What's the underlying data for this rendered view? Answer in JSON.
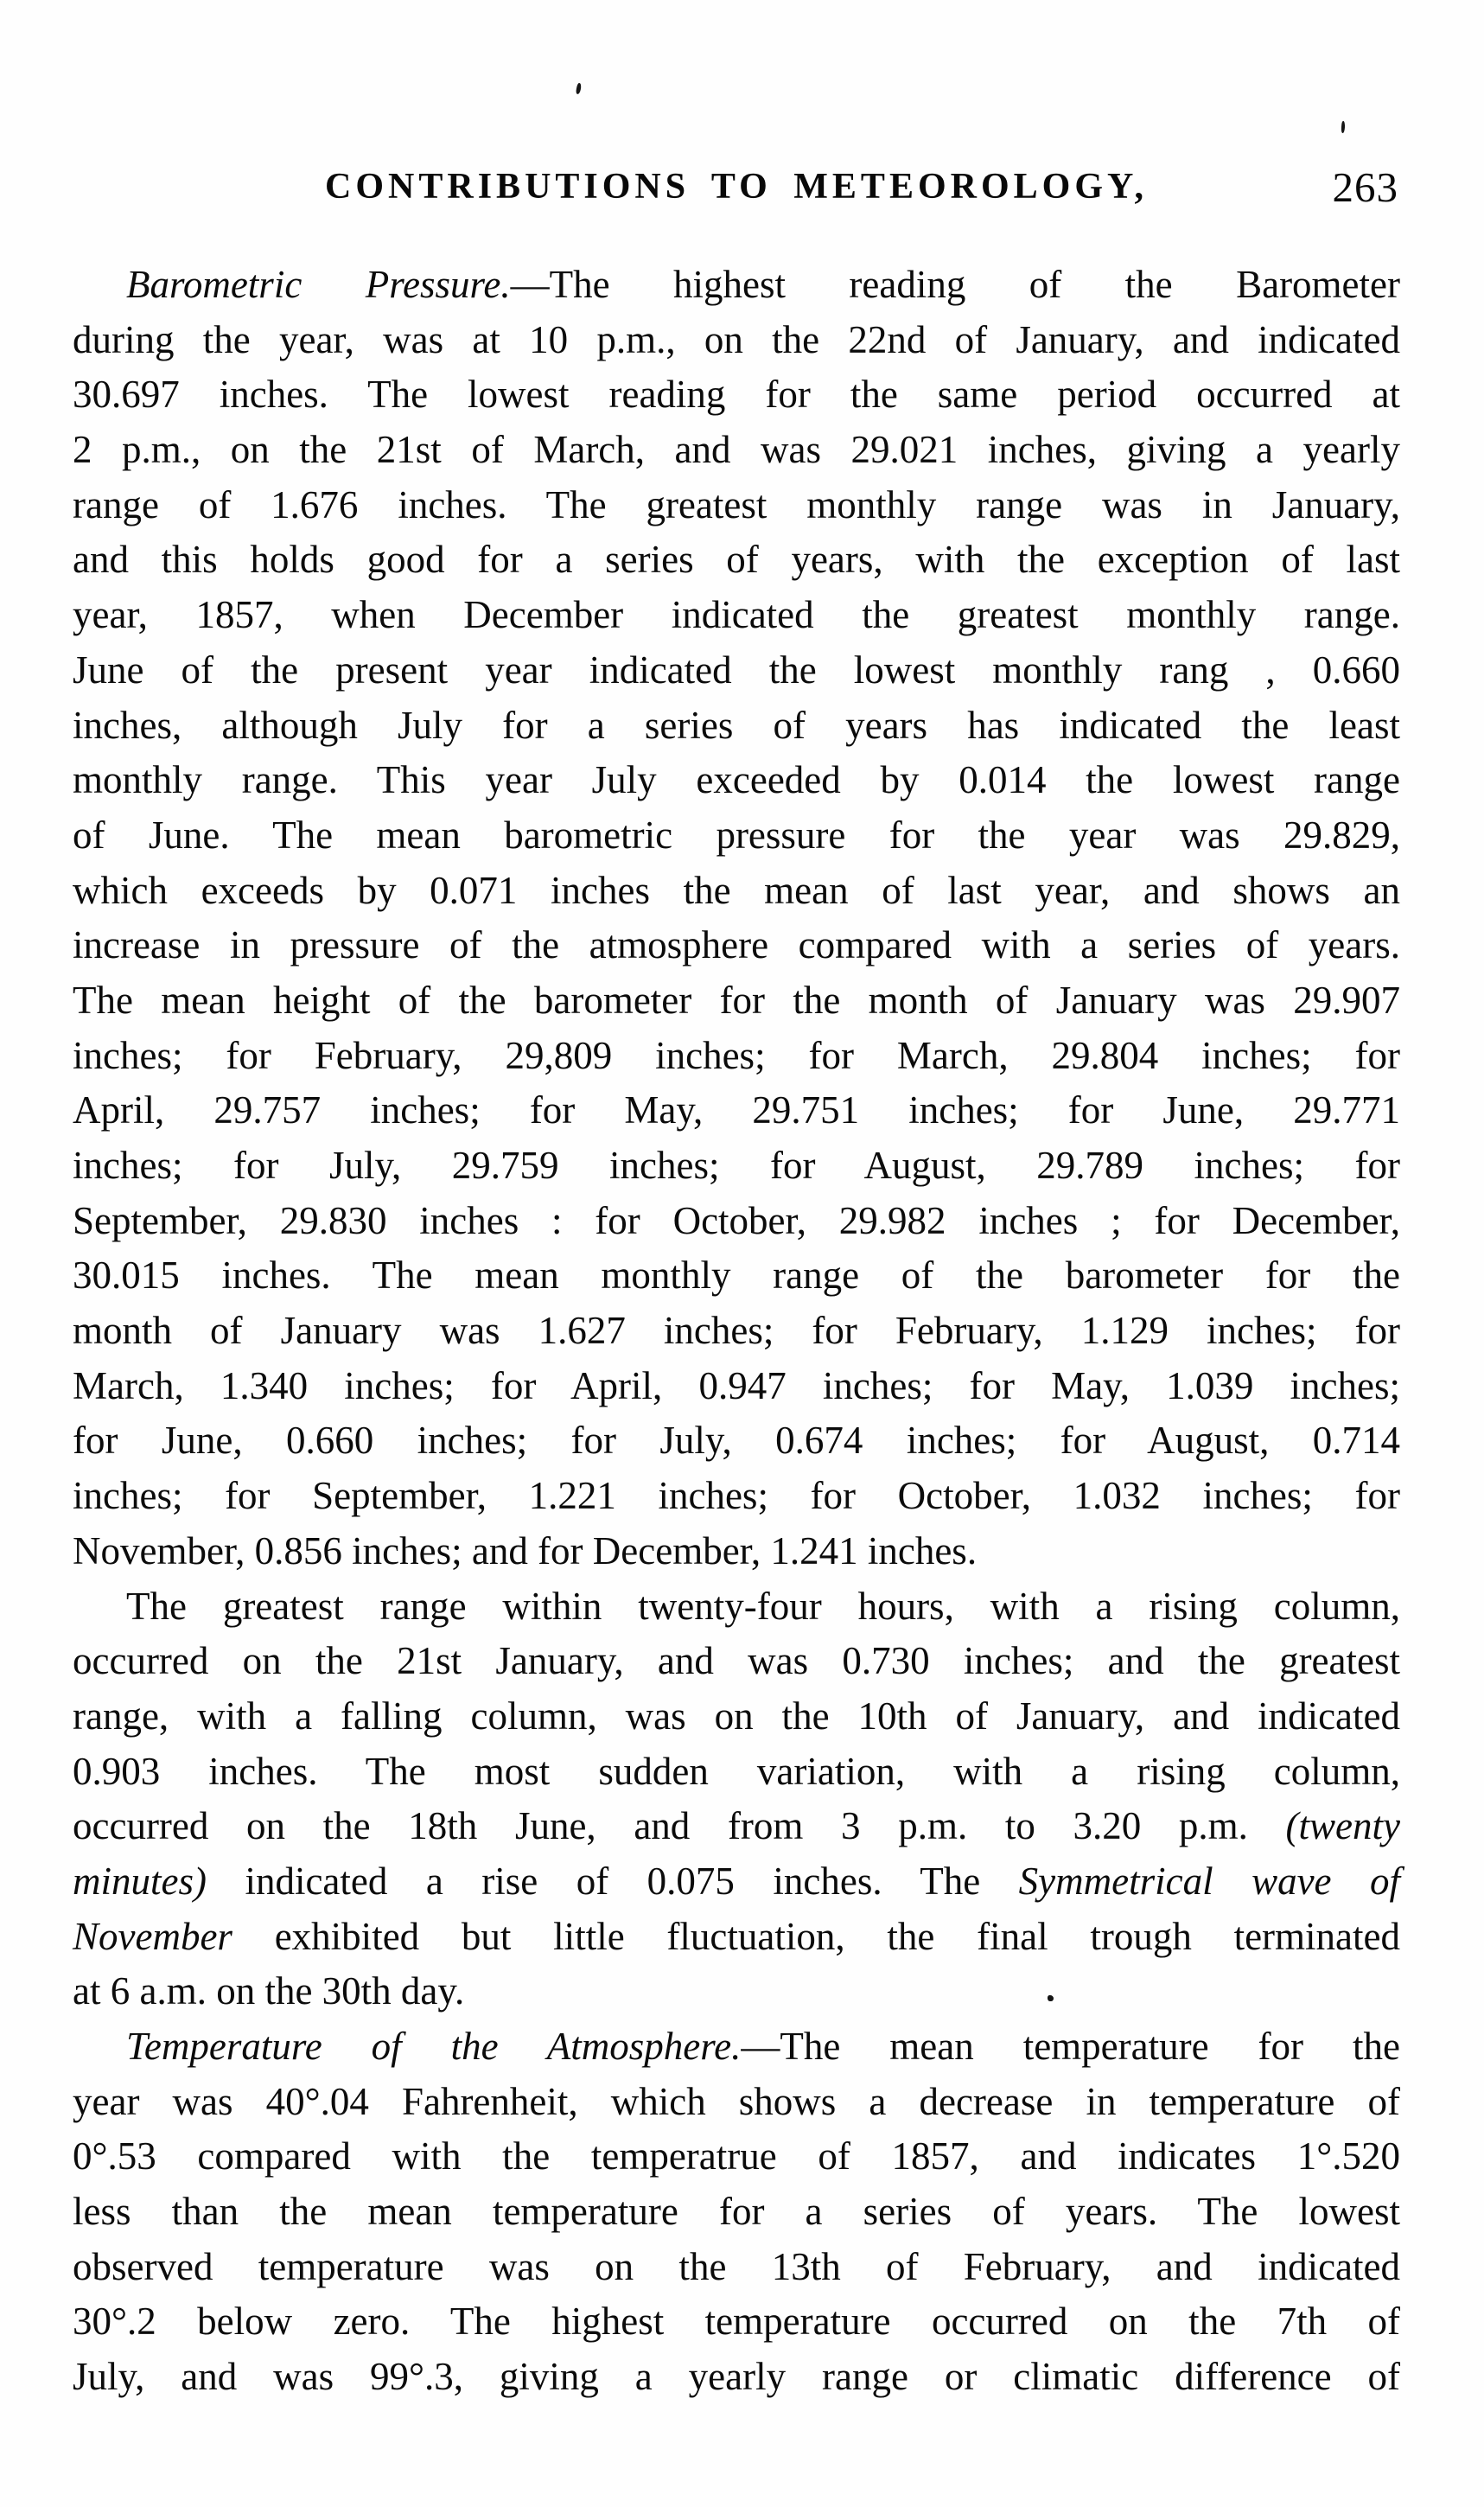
{
  "document": {
    "header": {
      "title": "CONTRIBUTIONS TO METEOROLOGY,",
      "page_number": "263"
    },
    "paragraphs": [
      {
        "name": "barometric-pressure",
        "lines": [
          {
            "indent": true,
            "flush": false,
            "runs": [
              {
                "text": "Barometric Pressure.",
                "italic": true
              },
              {
                "text": "—The highest reading of the Barometer",
                "italic": false
              }
            ]
          },
          {
            "indent": false,
            "flush": false,
            "runs": [
              {
                "text": "during the year, was at 10 p.m., on the 22nd of January, and indicated",
                "italic": false
              }
            ]
          },
          {
            "indent": false,
            "flush": false,
            "runs": [
              {
                "text": "30.697 inches. The lowest reading for the same period occurred at",
                "italic": false
              }
            ]
          },
          {
            "indent": false,
            "flush": false,
            "runs": [
              {
                "text": "2 p.m., on the 21st of March, and was 29.021 inches, giving a yearly",
                "italic": false
              }
            ]
          },
          {
            "indent": false,
            "flush": false,
            "runs": [
              {
                "text": "range of 1.676 inches. The greatest monthly range was in January,",
                "italic": false
              }
            ]
          },
          {
            "indent": false,
            "flush": false,
            "runs": [
              {
                "text": "and this holds good for a series of years, with the exception of last",
                "italic": false
              }
            ]
          },
          {
            "indent": false,
            "flush": false,
            "runs": [
              {
                "text": "year, 1857, when December indicated the greatest monthly range.",
                "italic": false
              }
            ]
          },
          {
            "indent": false,
            "flush": false,
            "runs": [
              {
                "text": "June of the present year indicated the lowest monthly rang , 0.660",
                "italic": false
              }
            ]
          },
          {
            "indent": false,
            "flush": false,
            "runs": [
              {
                "text": "inches, although July for a series of years has indicated the least",
                "italic": false
              }
            ]
          },
          {
            "indent": false,
            "flush": false,
            "runs": [
              {
                "text": "monthly range. This year July exceeded by 0.014 the lowest range",
                "italic": false
              }
            ]
          },
          {
            "indent": false,
            "flush": false,
            "runs": [
              {
                "text": "of June. The mean barometric pressure for the year was 29.829,",
                "italic": false
              }
            ]
          },
          {
            "indent": false,
            "flush": false,
            "runs": [
              {
                "text": "which exceeds by 0.071 inches the mean of last year, and shows an",
                "italic": false
              }
            ]
          },
          {
            "indent": false,
            "flush": false,
            "runs": [
              {
                "text": "increase in pressure of the atmosphere compared with a series of years.",
                "italic": false
              }
            ]
          },
          {
            "indent": false,
            "flush": false,
            "runs": [
              {
                "text": "The mean height of the barometer for the month of January was 29.907",
                "italic": false
              }
            ]
          },
          {
            "indent": false,
            "flush": false,
            "runs": [
              {
                "text": "inches; for February, 29,809 inches; for March, 29.804 inches; for",
                "italic": false
              }
            ]
          },
          {
            "indent": false,
            "flush": false,
            "runs": [
              {
                "text": "April, 29.757 inches; for May, 29.751 inches; for June, 29.771",
                "italic": false
              }
            ]
          },
          {
            "indent": false,
            "flush": false,
            "runs": [
              {
                "text": "inches; for July, 29.759 inches; for August, 29.789 inches; for",
                "italic": false
              }
            ]
          },
          {
            "indent": false,
            "flush": false,
            "runs": [
              {
                "text": "September, 29.830 inches : for October, 29.982 inches ; for December,",
                "italic": false
              }
            ]
          },
          {
            "indent": false,
            "flush": false,
            "runs": [
              {
                "text": "30.015 inches. The mean monthly range of the barometer for the",
                "italic": false
              }
            ]
          },
          {
            "indent": false,
            "flush": false,
            "runs": [
              {
                "text": "month of January was 1.627 inches; for February, 1.129 inches; for",
                "italic": false
              }
            ]
          },
          {
            "indent": false,
            "flush": false,
            "runs": [
              {
                "text": "March, 1.340 inches; for April, 0.947 inches; for May, 1.039 inches;",
                "italic": false
              }
            ]
          },
          {
            "indent": false,
            "flush": false,
            "runs": [
              {
                "text": "for June, 0.660 inches; for July, 0.674 inches; for August, 0.714",
                "italic": false
              }
            ]
          },
          {
            "indent": false,
            "flush": false,
            "runs": [
              {
                "text": "inches; for September, 1.221 inches; for October, 1.032 inches; for",
                "italic": false
              }
            ]
          },
          {
            "indent": false,
            "flush": true,
            "runs": [
              {
                "text": "November, 0.856 inches; and for December, 1.241 inches.",
                "italic": false
              }
            ]
          }
        ]
      },
      {
        "name": "greatest-range",
        "lines": [
          {
            "indent": true,
            "flush": false,
            "runs": [
              {
                "text": "The greatest range within twenty-four hours, with a rising column,",
                "italic": false
              }
            ]
          },
          {
            "indent": false,
            "flush": false,
            "runs": [
              {
                "text": "occurred on the 21st January, and was 0.730 inches; and the greatest",
                "italic": false
              }
            ]
          },
          {
            "indent": false,
            "flush": false,
            "runs": [
              {
                "text": "range, with a falling column, was on the 10th of January, and indicated",
                "italic": false
              }
            ]
          },
          {
            "indent": false,
            "flush": false,
            "runs": [
              {
                "text": "0.903 inches. The most sudden variation, with a rising column,",
                "italic": false
              }
            ]
          },
          {
            "indent": false,
            "flush": false,
            "runs": [
              {
                "text": "occurred on the 18th June, and from 3 p.m. to 3.20 p.m. ",
                "italic": false
              },
              {
                "text": "(twenty",
                "italic": true
              }
            ]
          },
          {
            "indent": false,
            "flush": false,
            "runs": [
              {
                "text": "minutes)",
                "italic": true
              },
              {
                "text": " indicated a rise of 0.075 inches. The ",
                "italic": false
              },
              {
                "text": "Symmetrical wave of",
                "italic": true
              }
            ]
          },
          {
            "indent": false,
            "flush": false,
            "runs": [
              {
                "text": "November",
                "italic": true
              },
              {
                "text": " exhibited but little fluctuation, the final trough terminated",
                "italic": false
              }
            ]
          },
          {
            "indent": false,
            "flush": true,
            "runs": [
              {
                "text": "at 6 a.m. on the 30th day.",
                "italic": false
              }
            ]
          }
        ]
      },
      {
        "name": "temperature-of-atmosphere",
        "lines": [
          {
            "indent": true,
            "flush": false,
            "runs": [
              {
                "text": "Temperature of the Atmosphere.",
                "italic": true
              },
              {
                "text": "—The mean temperature for the",
                "italic": false
              }
            ]
          },
          {
            "indent": false,
            "flush": false,
            "runs": [
              {
                "text": "year was 40°.04 Fahrenheit, which shows a decrease in temperature of",
                "italic": false
              }
            ]
          },
          {
            "indent": false,
            "flush": false,
            "runs": [
              {
                "text": "0°.53 compared with the temperatrue of 1857, and indicates 1°.520",
                "italic": false
              }
            ]
          },
          {
            "indent": false,
            "flush": false,
            "runs": [
              {
                "text": "less than the mean temperature for a series of years. The lowest",
                "italic": false
              }
            ]
          },
          {
            "indent": false,
            "flush": false,
            "runs": [
              {
                "text": "observed temperature was on the 13th of February, and indicated",
                "italic": false
              }
            ]
          },
          {
            "indent": false,
            "flush": false,
            "runs": [
              {
                "text": "30°.2 below zero. The highest temperature occurred on the 7th of",
                "italic": false
              }
            ]
          },
          {
            "indent": false,
            "flush": false,
            "runs": [
              {
                "text": "July, and was 99°.3, giving a yearly range or climatic difference of",
                "italic": false
              }
            ]
          }
        ]
      }
    ]
  }
}
